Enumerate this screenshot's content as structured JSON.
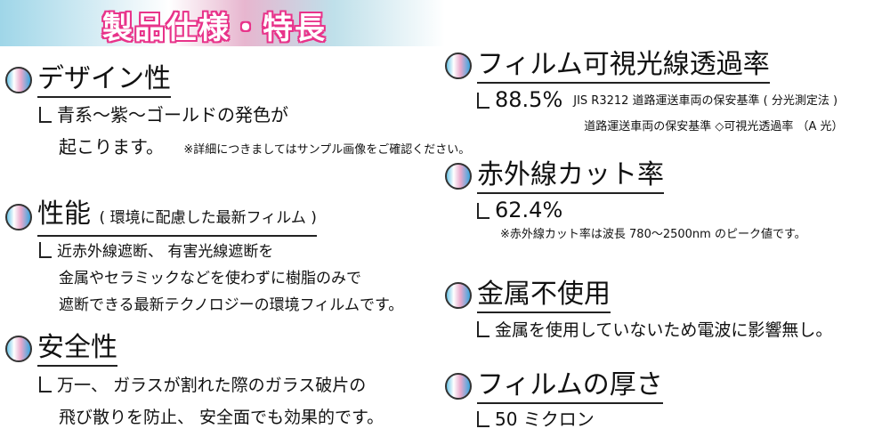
{
  "banner": {
    "title": "製品仕様・特長"
  },
  "left": [
    {
      "heading": "デザイン性",
      "lines": [
        "青系～紫～ゴールドの発色が",
        "起こります。"
      ],
      "note": "※詳細につきましてはサンプル画像をご確認ください。"
    },
    {
      "heading": "性能",
      "heading_sub": "( 環境に配慮した最新フィルム )",
      "lines": [
        "近赤外線遮断、 有害光線遮断を",
        "金属やセラミックなどを使わずに樹脂のみで",
        "遮断できる最新テクノロジーの環境フィルムです。"
      ]
    },
    {
      "heading": "安全性",
      "lines": [
        "万一、 ガラスが割れた際のガラス破片の",
        "飛び散りを防止、 安全面でも効果的です。"
      ]
    }
  ],
  "right": [
    {
      "heading": "フィルム可視光線透過率",
      "value": "88.5%",
      "notes": [
        "JIS R3212 道路運送車両の保安基準 ( 分光測定法 )",
        "道路運送車両の保安基準 ◇可視光透過率 （A 光）"
      ]
    },
    {
      "heading": "赤外線カット率",
      "value": "62.4%",
      "notes": [
        "※赤外線カット率は波長 780～2500nm のピーク値です。"
      ]
    },
    {
      "heading": "金属不使用",
      "value": "金属を使用していないため電波に影響無し。"
    },
    {
      "heading": "フィルムの厚さ",
      "value": "50 ミクロン"
    }
  ]
}
